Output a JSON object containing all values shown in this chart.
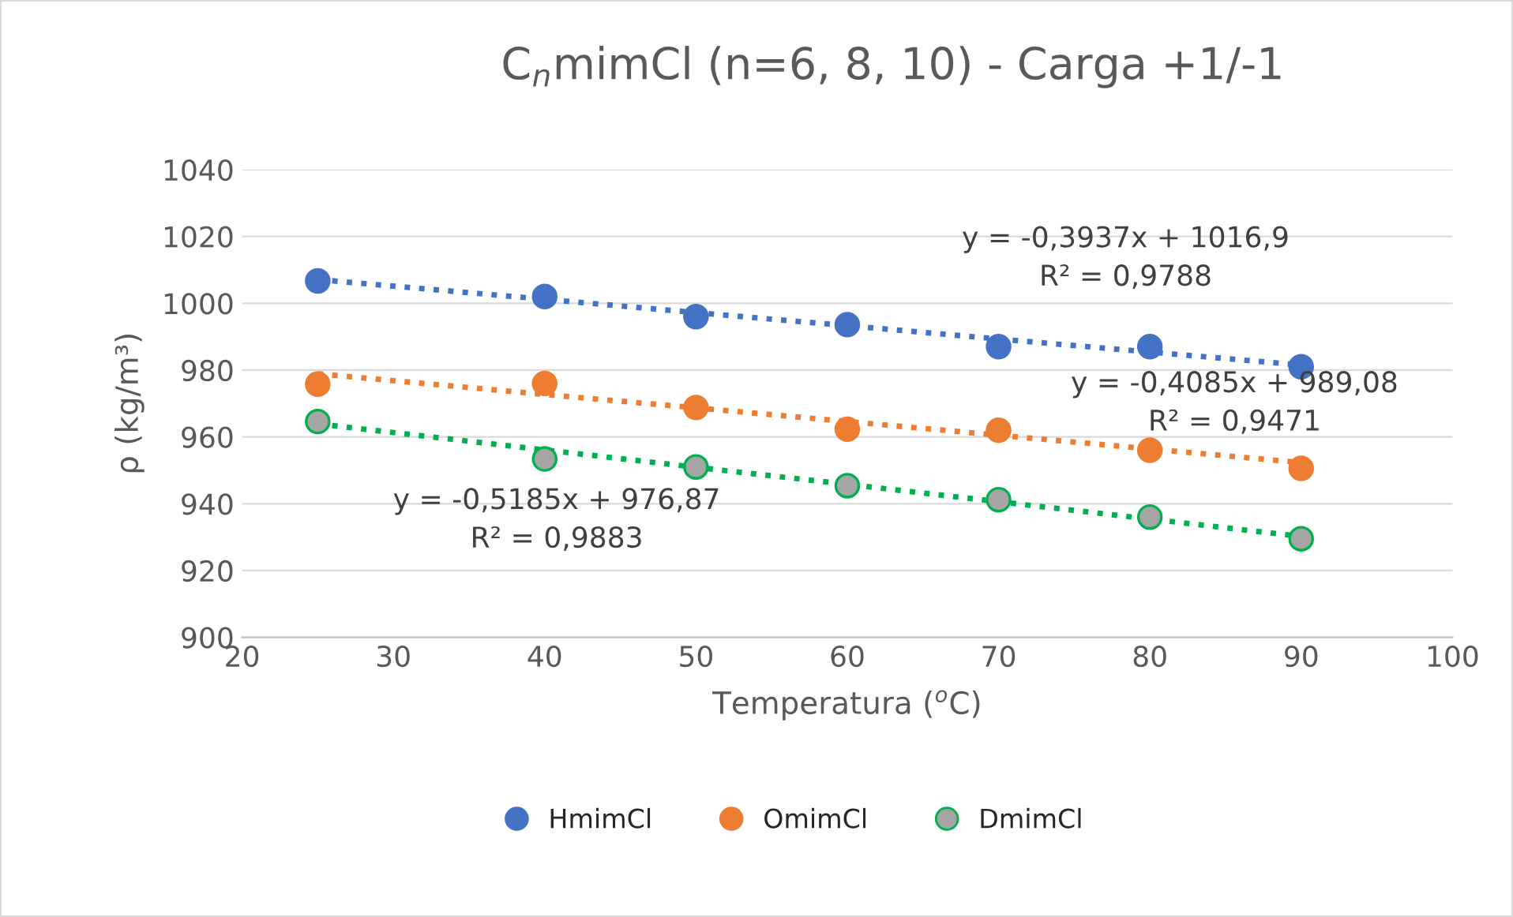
{
  "chart_data": {
    "type": "scatter",
    "title": "C$_{n}$mimCl (n=6, 8, 10) - Carga +1/-1",
    "xlabel": "Temperatura ($^{o}$C)",
    "ylabel": "ρ (kg/m³)",
    "x": [
      25,
      40,
      50,
      60,
      70,
      80,
      90
    ],
    "series": [
      {
        "name": "HmimCl",
        "color": "#4472c4",
        "values": [
          1006.7,
          1002,
          996,
          993.6,
          987,
          987,
          981
        ]
      },
      {
        "name": "OmimCl",
        "color": "#ed7d31",
        "values": [
          975.8,
          976,
          968.8,
          962.3,
          962,
          956,
          950.6
        ]
      },
      {
        "name": "DmimCl",
        "color": "#a5a5a5",
        "values": [
          964.6,
          953.4,
          951,
          945.4,
          941.2,
          936,
          929.5
        ]
      },
      {
        "type": "line",
        "color": "#4472c4",
        "line_style": "dotted",
        "marker": "none",
        "values": [
          1007.1,
          1001.2,
          997.2,
          993.3,
          989.3,
          985.4,
          981.5
        ]
      },
      {
        "type": "line",
        "color": "#ed7d31",
        "line_style": "dotted",
        "marker": "none",
        "values": [
          978.9,
          972.7,
          968.7,
          964.6,
          960.5,
          956.4,
          952.3
        ]
      },
      {
        "type": "line",
        "color": "#00b050",
        "line_style": "dotted",
        "marker": "none",
        "values": [
          963.9,
          956.1,
          950.9,
          945.8,
          940.6,
          935.4,
          930.2
        ]
      }
    ],
    "annotations": [
      "y = -0,3937x + 1016,9\nR² = 0,9788",
      "y = -0,4085x + 989,08\nR² = 0,9471",
      "y = -0,5185x + 976,87\nR² = 0,9883"
    ],
    "xlim": [
      20,
      100
    ],
    "xticks": [
      20,
      30,
      40,
      50,
      60,
      70,
      80,
      90,
      100
    ],
    "ylim": [
      900,
      1040
    ],
    "yticks": [
      900,
      920,
      940,
      960,
      980,
      1000,
      1020,
      1040
    ],
    "grid": "y",
    "legend": "bottom",
    "marker": "circle"
  }
}
